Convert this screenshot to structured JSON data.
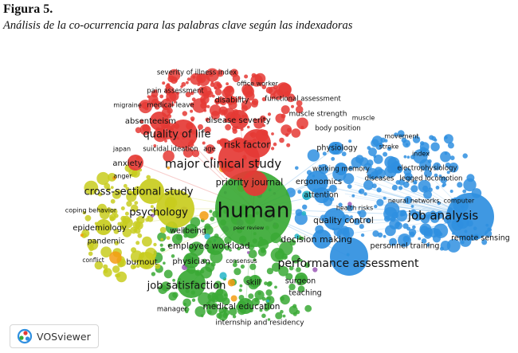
{
  "figure": {
    "label": "Figura 5.",
    "title": "Análisis de la co-ocurrencia para las palabras clave según las indexadoras"
  },
  "software": {
    "name": "VOSviewer",
    "logo_icon": "vosviewer-logo-icon"
  },
  "network": {
    "cluster_colors": {
      "red": "#e53935",
      "blue": "#2f8fe0",
      "green": "#3aa935",
      "yellow": "#c8cc1e",
      "purple": "#9b59b6",
      "orange": "#f39c12",
      "cyan": "#25b5c8"
    },
    "nodes": [
      {
        "label": "human",
        "cluster": "green"
      },
      {
        "label": "major clinical study",
        "cluster": "red"
      },
      {
        "label": "job analysis",
        "cluster": "blue"
      },
      {
        "label": "performance assessment",
        "cluster": "blue"
      },
      {
        "label": "cross-sectional study",
        "cluster": "yellow"
      },
      {
        "label": "psychology",
        "cluster": "yellow"
      },
      {
        "label": "quality of life",
        "cluster": "red"
      },
      {
        "label": "job satisfaction",
        "cluster": "green"
      },
      {
        "label": "priority journal",
        "cluster": "red"
      },
      {
        "label": "risk factor",
        "cluster": "red"
      },
      {
        "label": "absenteeism",
        "cluster": "red"
      },
      {
        "label": "disease severity",
        "cluster": "red"
      },
      {
        "label": "anxiety",
        "cluster": "red"
      },
      {
        "label": "ergonomics",
        "cluster": "blue"
      },
      {
        "label": "attention",
        "cluster": "blue"
      },
      {
        "label": "quality control",
        "cluster": "blue"
      },
      {
        "label": "decision making",
        "cluster": "blue"
      },
      {
        "label": "personnel training",
        "cluster": "blue"
      },
      {
        "label": "remote sensing",
        "cluster": "blue"
      },
      {
        "label": "epidemiology",
        "cluster": "yellow"
      },
      {
        "label": "pandemic",
        "cluster": "yellow"
      },
      {
        "label": "coping behavior",
        "cluster": "yellow"
      },
      {
        "label": "conflict",
        "cluster": "yellow"
      },
      {
        "label": "burnout",
        "cluster": "yellow"
      },
      {
        "label": "wellbeing",
        "cluster": "green"
      },
      {
        "label": "employee workload",
        "cluster": "green"
      },
      {
        "label": "physician",
        "cluster": "green"
      },
      {
        "label": "consensus",
        "cluster": "green"
      },
      {
        "label": "skill",
        "cluster": "green"
      },
      {
        "label": "surgeon",
        "cluster": "green"
      },
      {
        "label": "teaching",
        "cluster": "green"
      },
      {
        "label": "medical education",
        "cluster": "green"
      },
      {
        "label": "internship and residency",
        "cluster": "green"
      },
      {
        "label": "manager",
        "cluster": "green"
      },
      {
        "label": "peer review",
        "cluster": "green"
      },
      {
        "label": "severity of illness index",
        "cluster": "red"
      },
      {
        "label": "office worker",
        "cluster": "red"
      },
      {
        "label": "pain assessment",
        "cluster": "red"
      },
      {
        "label": "disability",
        "cluster": "red"
      },
      {
        "label": "functional assessment",
        "cluster": "red"
      },
      {
        "label": "migraine",
        "cluster": "red"
      },
      {
        "label": "medical leave",
        "cluster": "red"
      },
      {
        "label": "muscle strength",
        "cluster": "red"
      },
      {
        "label": "muscle",
        "cluster": "blue"
      },
      {
        "label": "body position",
        "cluster": "blue"
      },
      {
        "label": "movement",
        "cluster": "blue"
      },
      {
        "label": "physiology",
        "cluster": "blue"
      },
      {
        "label": "stroke",
        "cluster": "blue"
      },
      {
        "label": "index",
        "cluster": "blue"
      },
      {
        "label": "japan",
        "cluster": "red"
      },
      {
        "label": "suicidal ideation",
        "cluster": "red"
      },
      {
        "label": "age",
        "cluster": "red"
      },
      {
        "label": "working memory",
        "cluster": "blue"
      },
      {
        "label": "electrophysiology",
        "cluster": "blue"
      },
      {
        "label": "diseases",
        "cluster": "blue"
      },
      {
        "label": "legged locomotion",
        "cluster": "blue"
      },
      {
        "label": "anger",
        "cluster": "yellow"
      },
      {
        "label": "health risks",
        "cluster": "blue"
      },
      {
        "label": "neural networks, computer",
        "cluster": "blue"
      }
    ]
  }
}
